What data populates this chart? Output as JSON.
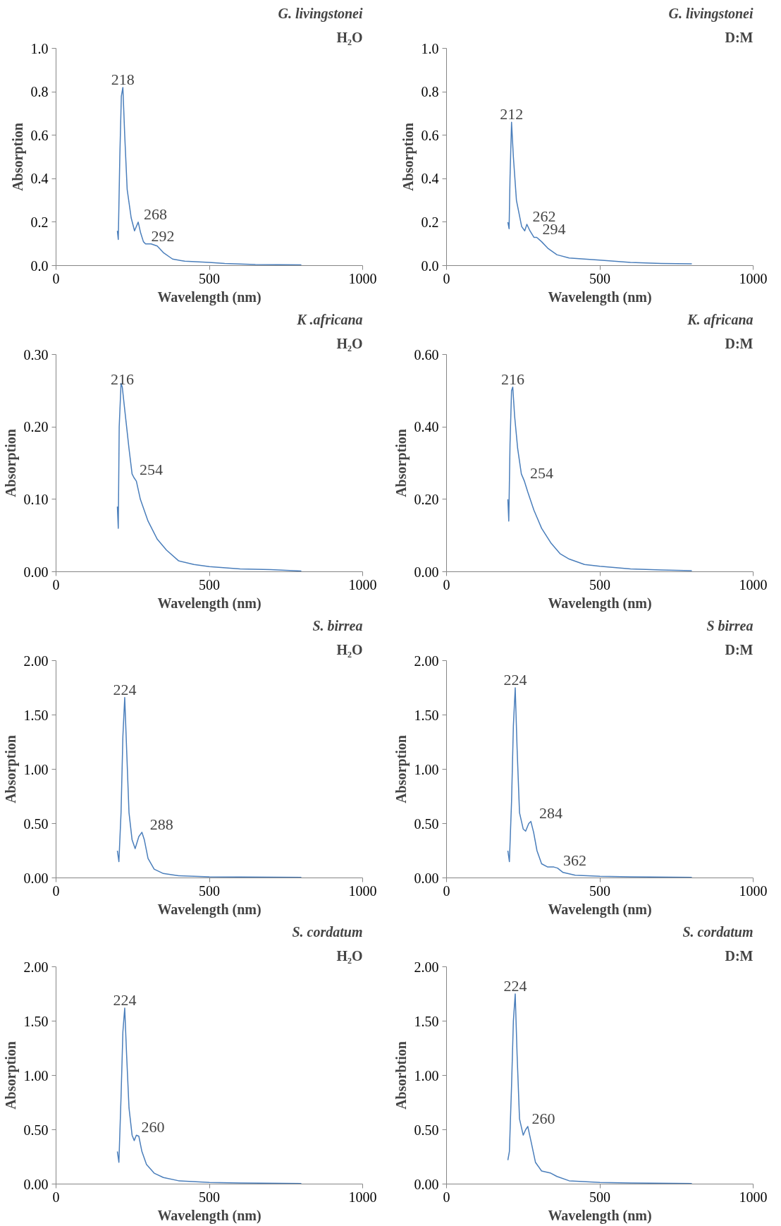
{
  "chart_data": [
    {
      "type": "line",
      "title": "G. livingstonei",
      "subtitle": "H₂O",
      "xlabel": "Wavelength (nm)",
      "ylabel": "Absorption",
      "xlim": [
        0,
        1000
      ],
      "xticks": [
        0,
        500,
        1000
      ],
      "ylim": [
        0,
        1.0
      ],
      "yticks": [
        {
          "value": 0,
          "label": "0.0"
        },
        0.2,
        0.4,
        0.6,
        0.8,
        {
          "value": 1.0,
          "label": "1.0"
        }
      ],
      "color": "#4a7ebb",
      "x": [
        200,
        203,
        208,
        213,
        218,
        224,
        232,
        245,
        256,
        262,
        268,
        276,
        285,
        292,
        310,
        330,
        350,
        380,
        420,
        500,
        550,
        650,
        800
      ],
      "values": [
        0.16,
        0.12,
        0.5,
        0.78,
        0.82,
        0.6,
        0.35,
        0.22,
        0.16,
        0.18,
        0.2,
        0.15,
        0.11,
        0.1,
        0.1,
        0.09,
        0.06,
        0.03,
        0.02,
        0.015,
        0.01,
        0.005,
        0.003
      ],
      "annotations": [
        {
          "text": "218",
          "x": 218,
          "y": 0.82
        },
        {
          "text": "268",
          "x": 268,
          "y": 0.2
        },
        {
          "text": "292",
          "x": 292,
          "y": 0.1
        }
      ]
    },
    {
      "type": "line",
      "title": "G. livingstonei",
      "subtitle": "D:M",
      "xlabel": "Wavelength (nm)",
      "ylabel": "Absorption",
      "xlim": [
        0,
        1000
      ],
      "xticks": [
        0,
        500,
        1000
      ],
      "ylim": [
        0,
        1.0
      ],
      "yticks": [
        {
          "value": 0,
          "label": "0.0"
        },
        0.2,
        0.4,
        0.6,
        0.8,
        {
          "value": 1.0,
          "label": "1.0"
        }
      ],
      "color": "#4a7ebb",
      "x": [
        200,
        204,
        207,
        212,
        218,
        228,
        245,
        255,
        262,
        272,
        285,
        294,
        310,
        330,
        360,
        400,
        500,
        600,
        700,
        800
      ],
      "values": [
        0.2,
        0.17,
        0.4,
        0.66,
        0.5,
        0.3,
        0.18,
        0.16,
        0.19,
        0.16,
        0.13,
        0.13,
        0.11,
        0.08,
        0.05,
        0.035,
        0.025,
        0.015,
        0.01,
        0.008
      ],
      "annotations": [
        {
          "text": "212",
          "x": 212,
          "y": 0.66
        },
        {
          "text": "262",
          "x": 262,
          "y": 0.19
        },
        {
          "text": "294",
          "x": 294,
          "y": 0.13
        }
      ]
    },
    {
      "type": "line",
      "title": "K .africana",
      "subtitle": "H₂O",
      "xlabel": "Wavelength (nm)",
      "ylabel": "Absorption",
      "xlim": [
        0,
        1000
      ],
      "xticks": [
        0,
        500,
        1000
      ],
      "ylim": [
        0,
        0.3
      ],
      "yticks": [
        {
          "value": 0,
          "label": "0.00"
        },
        {
          "value": 0.1,
          "label": "0.10"
        },
        {
          "value": 0.2,
          "label": "0.20"
        },
        {
          "value": 0.3,
          "label": "0.30"
        }
      ],
      "color": "#4a7ebb",
      "x": [
        200,
        203,
        206,
        212,
        216,
        225,
        238,
        248,
        254,
        262,
        275,
        300,
        330,
        360,
        400,
        450,
        500,
        600,
        700,
        800
      ],
      "values": [
        0.09,
        0.06,
        0.2,
        0.26,
        0.255,
        0.22,
        0.17,
        0.135,
        0.13,
        0.125,
        0.1,
        0.07,
        0.045,
        0.03,
        0.015,
        0.01,
        0.007,
        0.004,
        0.003,
        0.001
      ],
      "annotations": [
        {
          "text": "216",
          "x": 216,
          "y": 0.255
        },
        {
          "text": "254",
          "x": 254,
          "y": 0.13
        }
      ]
    },
    {
      "type": "line",
      "title": "K. africana",
      "subtitle": "D:M",
      "xlabel": "Wavelength (nm)",
      "ylabel": "Absorption",
      "xlim": [
        0,
        1000
      ],
      "xticks": [
        0,
        500,
        1000
      ],
      "ylim": [
        0,
        0.6
      ],
      "yticks": [
        {
          "value": 0,
          "label": "0.00"
        },
        {
          "value": 0.2,
          "label": "0.20"
        },
        {
          "value": 0.4,
          "label": "0.40"
        },
        {
          "value": 0.6,
          "label": "0.60"
        }
      ],
      "color": "#4a7ebb",
      "x": [
        200,
        203,
        207,
        212,
        216,
        222,
        232,
        244,
        254,
        265,
        285,
        310,
        340,
        370,
        400,
        450,
        500,
        600,
        700,
        800
      ],
      "values": [
        0.2,
        0.14,
        0.35,
        0.5,
        0.51,
        0.43,
        0.34,
        0.27,
        0.25,
        0.22,
        0.17,
        0.12,
        0.08,
        0.05,
        0.035,
        0.02,
        0.015,
        0.008,
        0.005,
        0.003
      ],
      "annotations": [
        {
          "text": "216",
          "x": 216,
          "y": 0.51
        },
        {
          "text": "254",
          "x": 254,
          "y": 0.25
        }
      ]
    },
    {
      "type": "line",
      "title": "S. birrea",
      "subtitle": "H₂O",
      "xlabel": "Wavelength (nm)",
      "ylabel": "Absorption",
      "xlim": [
        0,
        1000
      ],
      "xticks": [
        0,
        500,
        1000
      ],
      "ylim": [
        0,
        2.0
      ],
      "yticks": [
        {
          "value": 0,
          "label": "0.00"
        },
        {
          "value": 0.5,
          "label": "0.50"
        },
        {
          "value": 1.0,
          "label": "1.00"
        },
        {
          "value": 1.5,
          "label": "1.50"
        },
        {
          "value": 2.0,
          "label": "2.00"
        }
      ],
      "color": "#4a7ebb",
      "x": [
        200,
        205,
        212,
        218,
        224,
        230,
        238,
        248,
        258,
        270,
        280,
        288,
        300,
        320,
        350,
        400,
        500,
        600,
        800
      ],
      "values": [
        0.25,
        0.15,
        0.6,
        1.3,
        1.66,
        1.2,
        0.6,
        0.35,
        0.27,
        0.38,
        0.42,
        0.35,
        0.18,
        0.08,
        0.04,
        0.02,
        0.01,
        0.008,
        0.005
      ],
      "annotations": [
        {
          "text": "224",
          "x": 224,
          "y": 1.66
        },
        {
          "text": "288",
          "x": 288,
          "y": 0.42
        }
      ]
    },
    {
      "type": "line",
      "title": "S birrea",
      "subtitle": "D:M",
      "xlabel": "Wavelength (nm)",
      "ylabel": "Absorption",
      "xlim": [
        0,
        1000
      ],
      "xticks": [
        0,
        500,
        1000
      ],
      "ylim": [
        0,
        2.0
      ],
      "yticks": [
        {
          "value": 0,
          "label": "0.00"
        },
        {
          "value": 0.5,
          "label": "0.50"
        },
        {
          "value": 1.0,
          "label": "1.00"
        },
        {
          "value": 1.5,
          "label": "1.50"
        },
        {
          "value": 2.0,
          "label": "2.00"
        }
      ],
      "color": "#4a7ebb",
      "x": [
        200,
        205,
        212,
        218,
        224,
        230,
        238,
        250,
        258,
        268,
        275,
        284,
        295,
        310,
        330,
        350,
        362,
        380,
        420,
        500,
        600,
        800
      ],
      "values": [
        0.25,
        0.15,
        0.7,
        1.4,
        1.75,
        1.2,
        0.6,
        0.45,
        0.43,
        0.5,
        0.52,
        0.42,
        0.25,
        0.13,
        0.1,
        0.1,
        0.09,
        0.05,
        0.025,
        0.015,
        0.01,
        0.005
      ],
      "annotations": [
        {
          "text": "224",
          "x": 224,
          "y": 1.75
        },
        {
          "text": "284",
          "x": 284,
          "y": 0.52
        },
        {
          "text": "362",
          "x": 362,
          "y": 0.09
        }
      ]
    },
    {
      "type": "line",
      "title": "S. cordatum",
      "subtitle": "H₂O",
      "xlabel": "Wavelength (nm)",
      "ylabel": "Absorption",
      "xlim": [
        0,
        1000
      ],
      "xticks": [
        0,
        500,
        1000
      ],
      "ylim": [
        0,
        2.0
      ],
      "yticks": [
        {
          "value": 0,
          "label": "0.00"
        },
        {
          "value": 0.5,
          "label": "0.50"
        },
        {
          "value": 1.0,
          "label": "1.00"
        },
        {
          "value": 1.5,
          "label": "1.50"
        },
        {
          "value": 2.0,
          "label": "2.00"
        }
      ],
      "color": "#4a7ebb",
      "x": [
        200,
        205,
        212,
        218,
        224,
        230,
        238,
        248,
        255,
        262,
        270,
        280,
        295,
        320,
        350,
        400,
        500,
        600,
        800
      ],
      "values": [
        0.3,
        0.2,
        0.8,
        1.4,
        1.62,
        1.2,
        0.7,
        0.45,
        0.4,
        0.45,
        0.44,
        0.3,
        0.18,
        0.1,
        0.06,
        0.03,
        0.015,
        0.01,
        0.005
      ],
      "annotations": [
        {
          "text": "224",
          "x": 224,
          "y": 1.62
        },
        {
          "text": "260",
          "x": 260,
          "y": 0.45
        }
      ]
    },
    {
      "type": "line",
      "title": "S. cordatum",
      "subtitle": "D:M",
      "xlabel": "Wavelength (nm)",
      "ylabel": "Absorbtion",
      "xlim": [
        0,
        1000
      ],
      "xticks": [
        0,
        500,
        1000
      ],
      "ylim": [
        0,
        2.0
      ],
      "yticks": [
        {
          "value": 0,
          "label": "0.00"
        },
        {
          "value": 0.5,
          "label": "0.50"
        },
        {
          "value": 1.0,
          "label": "1.00"
        },
        {
          "value": 1.5,
          "label": "1.50"
        },
        {
          "value": 2.0,
          "label": "2.00"
        }
      ],
      "color": "#4a7ebb",
      "x": [
        200,
        205,
        212,
        218,
        224,
        230,
        238,
        250,
        258,
        265,
        275,
        290,
        310,
        340,
        360,
        400,
        500,
        600,
        800
      ],
      "values": [
        0.22,
        0.3,
        0.9,
        1.5,
        1.75,
        1.2,
        0.6,
        0.45,
        0.5,
        0.53,
        0.4,
        0.2,
        0.12,
        0.1,
        0.07,
        0.03,
        0.015,
        0.01,
        0.005
      ],
      "annotations": [
        {
          "text": "224",
          "x": 224,
          "y": 1.75
        },
        {
          "text": "260",
          "x": 260,
          "y": 0.53
        }
      ]
    }
  ]
}
